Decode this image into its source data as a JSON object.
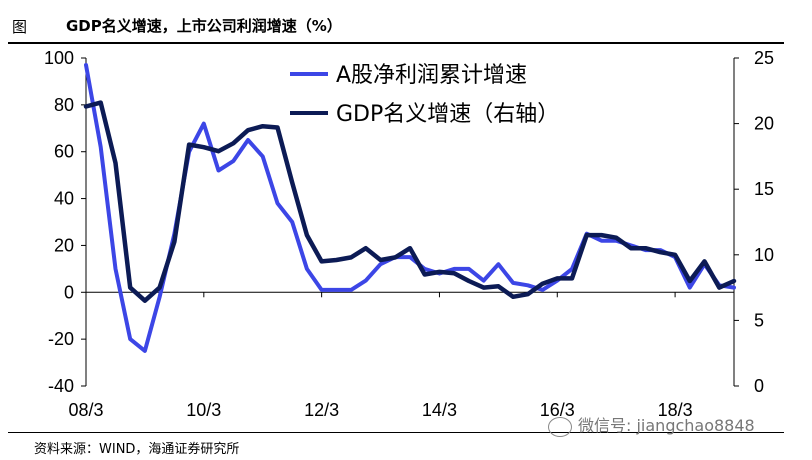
{
  "header": {
    "figure_label": "图",
    "title": "GDP名义增速，上市公司利润增速（%）"
  },
  "source": "资料来源：WIND，海通证券研究所",
  "watermark": "微信号: jiangchao8848",
  "chart_data": {
    "type": "line",
    "x_tick_labels": [
      "08/3",
      "10/3",
      "12/3",
      "14/3",
      "16/3",
      "18/3"
    ],
    "y_left": {
      "ylim": [
        -40,
        100
      ],
      "ticks": [
        -40,
        -20,
        0,
        20,
        40,
        60,
        80,
        100
      ]
    },
    "y_right": {
      "ylim": [
        0,
        25
      ],
      "ticks": [
        0,
        5,
        10,
        15,
        20,
        25
      ]
    },
    "legend_position": "top-right",
    "series": [
      {
        "name": "A股净利润累计增速",
        "axis": "left",
        "color": "#3c46e6",
        "x": [
          "2008-03",
          "2008-06",
          "2008-09",
          "2008-12",
          "2009-03",
          "2009-06",
          "2009-09",
          "2009-12",
          "2010-03",
          "2010-06",
          "2010-09",
          "2010-12",
          "2011-03",
          "2011-06",
          "2011-09",
          "2011-12",
          "2012-03",
          "2012-06",
          "2012-09",
          "2012-12",
          "2013-03",
          "2013-06",
          "2013-09",
          "2013-12",
          "2014-03",
          "2014-06",
          "2014-09",
          "2014-12",
          "2015-03",
          "2015-06",
          "2015-09",
          "2015-12",
          "2016-03",
          "2016-06",
          "2016-09",
          "2016-12",
          "2017-03",
          "2017-06",
          "2017-09",
          "2017-12",
          "2018-03",
          "2018-06",
          "2018-09",
          "2018-12",
          "2019-03"
        ],
        "values": [
          97,
          62,
          10,
          -20,
          -25,
          -2,
          25,
          60,
          72,
          52,
          56,
          65,
          58,
          38,
          30,
          10,
          1,
          1,
          1,
          5,
          12,
          15,
          15,
          10,
          8,
          10,
          10,
          5,
          12,
          4,
          3,
          1,
          5,
          10,
          25,
          22,
          22,
          20,
          18,
          18,
          15,
          2,
          12,
          3,
          2
        ]
      },
      {
        "name": "GDP名义增速（右轴）",
        "axis": "right",
        "color": "#0c1b55",
        "x": [
          "2008-03",
          "2008-06",
          "2008-09",
          "2008-12",
          "2009-03",
          "2009-06",
          "2009-09",
          "2009-12",
          "2010-03",
          "2010-06",
          "2010-09",
          "2010-12",
          "2011-03",
          "2011-06",
          "2011-09",
          "2011-12",
          "2012-03",
          "2012-06",
          "2012-09",
          "2012-12",
          "2013-03",
          "2013-06",
          "2013-09",
          "2013-12",
          "2014-03",
          "2014-06",
          "2014-09",
          "2014-12",
          "2015-03",
          "2015-06",
          "2015-09",
          "2015-12",
          "2016-03",
          "2016-06",
          "2016-09",
          "2016-12",
          "2017-03",
          "2017-06",
          "2017-09",
          "2017-12",
          "2018-03",
          "2018-06",
          "2018-09",
          "2018-12",
          "2019-03"
        ],
        "values": [
          21.3,
          21.6,
          17,
          7.5,
          6.5,
          7.5,
          11,
          18.4,
          18.2,
          17.9,
          18.5,
          19.5,
          19.8,
          19.7,
          15.5,
          11.5,
          9.5,
          9.6,
          9.8,
          10.5,
          9.6,
          9.8,
          10.5,
          8.5,
          8.7,
          8.6,
          8.0,
          7.5,
          7.6,
          6.8,
          7.0,
          7.8,
          8.2,
          8.2,
          11.5,
          11.5,
          11.3,
          10.5,
          10.5,
          10.2,
          10.0,
          8.0,
          9.5,
          7.5,
          8.0
        ]
      }
    ]
  }
}
